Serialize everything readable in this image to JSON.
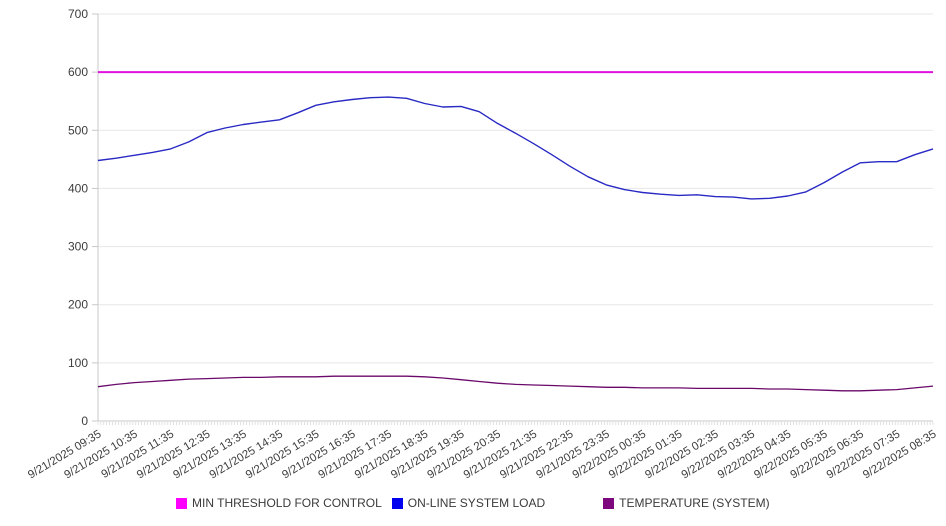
{
  "chart_data": {
    "type": "line",
    "title": "",
    "xlabel": "",
    "ylabel": "",
    "ylim": [
      0,
      700
    ],
    "ytick_step": 100,
    "grid": "horizontal",
    "legend_position": "bottom",
    "x_minor_ticks": 288,
    "x_labels": [
      "9/21/2025 09:35",
      "9/21/2025 10:35",
      "9/21/2025 11:35",
      "9/21/2025 12:35",
      "9/21/2025 13:35",
      "9/21/2025 14:35",
      "9/21/2025 15:35",
      "9/21/2025 16:35",
      "9/21/2025 17:35",
      "9/21/2025 18:35",
      "9/21/2025 19:35",
      "9/21/2025 20:35",
      "9/21/2025 21:35",
      "9/21/2025 22:35",
      "9/21/2025 23:35",
      "9/22/2025 00:35",
      "9/22/2025 01:35",
      "9/22/2025 02:35",
      "9/22/2025 03:35",
      "9/22/2025 04:35",
      "9/22/2025 05:35",
      "9/22/2025 06:35",
      "9/22/2025 07:35",
      "9/22/2025 08:35"
    ],
    "series": [
      {
        "name": "MIN THRESHOLD FOR CONTROL",
        "color": "#e012e0",
        "swatch": "#ff00ff",
        "width": 2,
        "values": [
          600,
          600
        ]
      },
      {
        "name": "ON-LINE SYSTEM LOAD",
        "color": "#2929c4",
        "swatch": "#0000ee",
        "width": 1.4,
        "values": [
          448,
          452,
          457,
          462,
          468,
          480,
          496,
          504,
          510,
          514,
          518,
          530,
          543,
          549,
          553,
          556,
          557,
          555,
          546,
          540,
          541,
          532,
          512,
          495,
          477,
          458,
          438,
          420,
          406,
          398,
          393,
          390,
          388,
          389,
          386,
          385,
          382,
          383,
          387,
          394,
          410,
          428,
          444,
          446,
          446,
          458,
          468
        ]
      },
      {
        "name": "TEMPERATURE (SYSTEM)",
        "color": "#6b096b",
        "swatch": "#7d077d",
        "width": 1.3,
        "values": [
          59,
          63,
          66,
          68,
          70,
          72,
          73,
          74,
          75,
          75,
          76,
          76,
          76,
          77,
          77,
          77,
          77,
          77,
          76,
          74,
          71,
          68,
          65,
          63,
          62,
          61,
          60,
          59,
          58,
          58,
          57,
          57,
          57,
          56,
          56,
          56,
          56,
          55,
          55,
          54,
          53,
          52,
          52,
          53,
          54,
          57,
          60
        ]
      }
    ],
    "ytick_labels": [
      "0",
      "100",
      "200",
      "300",
      "400",
      "500",
      "600",
      "700"
    ]
  },
  "legend": {
    "item1": "MIN THRESHOLD FOR CONTROL",
    "item2": "ON-LINE SYSTEM LOAD",
    "item3": "TEMPERATURE (SYSTEM)"
  },
  "colors": {
    "grid": "#e7e7e7",
    "axis": "#c8c8c8",
    "tick_text": "#3d3d3d"
  }
}
